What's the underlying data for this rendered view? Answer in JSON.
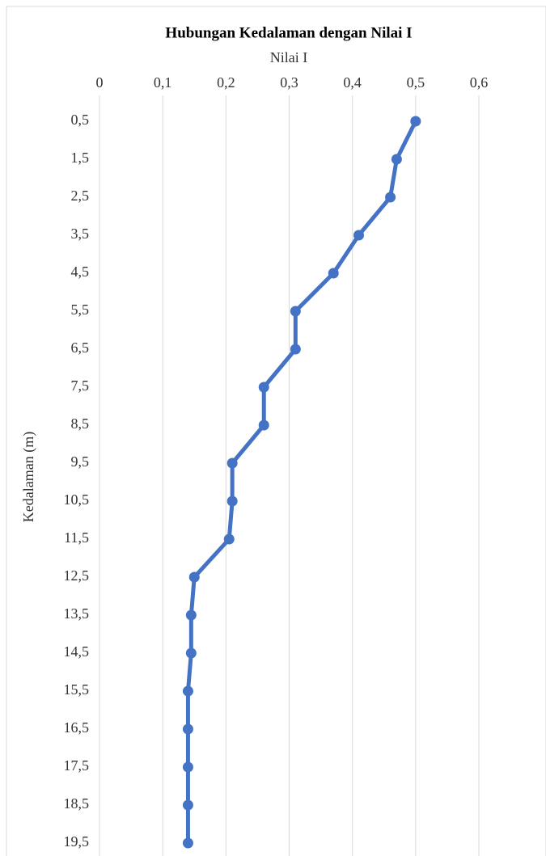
{
  "chart_data": {
    "type": "line",
    "title": "Hubungan Kedalaman dengan Nilai I",
    "x_label": "Nilai I",
    "y_label": "Kedalaman (m)",
    "categories": [
      "0,5",
      "1,5",
      "2,5",
      "3,5",
      "4,5",
      "5,5",
      "6,5",
      "7,5",
      "8,5",
      "9,5",
      "10,5",
      "11,5",
      "12,5",
      "13,5",
      "14,5",
      "15,5",
      "16,5",
      "17,5",
      "18,5",
      "19,5"
    ],
    "series": [
      {
        "name": "Nilai I",
        "color": "#4472c4",
        "values": [
          0.5,
          0.47,
          0.46,
          0.41,
          0.37,
          0.31,
          0.31,
          0.26,
          0.26,
          0.21,
          0.21,
          0.205,
          0.15,
          0.145,
          0.145,
          0.14,
          0.14,
          0.14,
          0.14,
          0.14
        ]
      }
    ],
    "xlim": [
      0,
      0.6
    ],
    "xticks": [
      0,
      {
        "value": 0.1,
        "label": "0,1"
      },
      {
        "value": 0.2,
        "label": "0,2"
      },
      {
        "value": 0.3,
        "label": "0,3"
      },
      {
        "value": 0.4,
        "label": "0,4"
      },
      {
        "value": 0.5,
        "label": "0,5"
      },
      {
        "value": 0.6,
        "label": "0,6"
      }
    ],
    "grid": true
  }
}
